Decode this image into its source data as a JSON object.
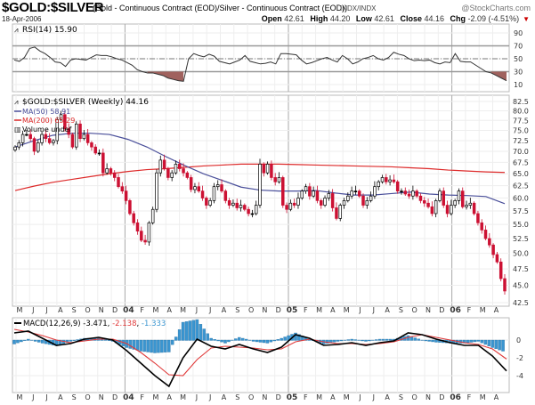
{
  "header": {
    "symbol": "$GOLD:$SILVER",
    "description": "(Gold - Continuous Contract (EOD)/Silver - Continuous Contract (EOD))",
    "exchange": "INDX/INDX",
    "watermark": "@StockCharts.com",
    "date": "18-Apr-2006",
    "open_label": "Open",
    "open": "42.61",
    "high_label": "High",
    "high": "44.20",
    "low_label": "Low",
    "low": "42.61",
    "close_label": "Close",
    "close": "44.16",
    "chg_label": "Chg",
    "chg": "-2.09 (-4.51%)",
    "chg_direction": "down"
  },
  "colors": {
    "up": "#000000",
    "down": "#cc1133",
    "ma50": "#4a4f9a",
    "ma200": "#dd2a2a",
    "macd": "#000000",
    "signal": "#e03a3a",
    "histogram": "#3a95d0",
    "rsi_fill": "#a0625e"
  },
  "x_axis": {
    "months": [
      "M",
      "J",
      "J",
      "A",
      "S",
      "O",
      "N",
      "D",
      "04",
      "F",
      "M",
      "A",
      "M",
      "J",
      "J",
      "A",
      "S",
      "O",
      "N",
      "D",
      "05",
      "F",
      "M",
      "A",
      "M",
      "J",
      "J",
      "A",
      "S",
      "O",
      "N",
      "D",
      "06",
      "F",
      "M",
      "A"
    ],
    "year_labels": [
      "04",
      "05",
      "06"
    ]
  },
  "chart_data": [
    {
      "panel": "rsi",
      "type": "line",
      "legend": "RSI(14) 15.90",
      "yticks": [
        90,
        70,
        50,
        30,
        10
      ],
      "ylim": [
        0,
        100
      ],
      "overbought": 70,
      "oversold": 30,
      "midline": 50,
      "values": [
        48,
        46,
        52,
        66,
        68,
        62,
        58,
        52,
        45,
        44,
        38,
        48,
        50,
        49,
        48,
        52,
        56,
        55,
        55,
        53,
        50,
        48,
        44,
        40,
        33,
        30,
        28,
        28,
        26,
        24,
        20,
        18,
        16,
        15,
        50,
        58,
        55,
        53,
        57,
        54,
        46,
        44,
        42,
        45,
        48,
        55,
        46,
        44,
        42,
        43,
        45,
        42,
        58,
        58,
        57,
        56,
        48,
        42,
        44,
        47,
        50,
        52,
        48,
        45,
        55,
        50,
        42,
        45,
        50,
        52,
        55,
        50,
        48,
        52,
        60,
        57,
        55,
        50,
        47,
        48,
        47,
        48,
        44,
        42,
        45,
        44,
        58,
        46,
        45,
        45,
        40,
        35,
        30,
        28,
        24,
        20,
        15.9
      ]
    },
    {
      "panel": "price",
      "type": "candlestick",
      "legend": {
        "title": "$GOLD:$SILVER (Weekly) 44.16",
        "ma50": "MA(50) 58.91",
        "ma200": "MA(200) 65.29",
        "volume": "Volume undef"
      },
      "scale": "log",
      "yticks": [
        82.5,
        80.0,
        77.5,
        75.0,
        72.5,
        70.0,
        67.5,
        65.0,
        62.5,
        60.0,
        57.5,
        55.0,
        52.5,
        50.0,
        47.5,
        45.0,
        42.5
      ],
      "ylim": [
        42.5,
        82.5
      ],
      "weekly_close": [
        71.0,
        72.0,
        74.0,
        74.0,
        73.0,
        70.0,
        72.0,
        74.0,
        73.0,
        72.0,
        72.5,
        77.7,
        79.0,
        75.4,
        74.0,
        71.0,
        76.6,
        73.0,
        74.0,
        72.0,
        71.0,
        69.6,
        69.6,
        65.2,
        66.1,
        65.2,
        64.2,
        62.3,
        61.4,
        59.5,
        57.0,
        55.3,
        53.8,
        52.2,
        51.9,
        55.3,
        57.8,
        65.2,
        68.0,
        66.1,
        64.2,
        65.2,
        67.1,
        66.1,
        65.2,
        64.2,
        61.7,
        62.3,
        61.4,
        60.0,
        58.6,
        59.5,
        62.3,
        62.7,
        61.4,
        59.5,
        58.6,
        59.0,
        58.1,
        58.6,
        57.8,
        57.0,
        57.0,
        58.6,
        67.1,
        65.2,
        67.1,
        64.2,
        63.3,
        64.2,
        58.6,
        57.8,
        59.0,
        58.6,
        60.0,
        61.4,
        62.3,
        60.4,
        61.4,
        59.5,
        58.6,
        60.0,
        60.9,
        58.1,
        56.1,
        58.6,
        59.5,
        60.4,
        61.4,
        61.4,
        60.4,
        58.6,
        59.5,
        60.4,
        62.3,
        63.3,
        64.2,
        63.3,
        63.7,
        63.3,
        61.4,
        61.4,
        60.8,
        60.4,
        61.4,
        60.4,
        59.5,
        59.0,
        58.3,
        57.0,
        59.5,
        61.4,
        58.6,
        57.0,
        58.6,
        59.5,
        61.4,
        58.3,
        58.6,
        59.0,
        57.0,
        55.3,
        54.0,
        52.5,
        51.4,
        49.8,
        48.6,
        46.0,
        44.16
      ],
      "ma50": [
        71.0,
        72.5,
        73.8,
        74.3,
        74.3,
        74.0,
        72.8,
        71.0,
        68.8,
        66.8,
        65.0,
        63.6,
        62.2,
        61.6,
        61.4,
        61.4,
        61.5,
        61.0,
        60.6,
        60.6,
        60.9,
        61.2,
        60.8,
        60.6,
        60.5,
        60.3,
        58.91
      ],
      "ma200": [
        61.5,
        62.4,
        63.2,
        63.8,
        64.4,
        65.0,
        65.5,
        65.9,
        66.1,
        66.4,
        66.7,
        66.9,
        67.1,
        67.1,
        67.1,
        67.0,
        66.9,
        66.8,
        66.7,
        66.6,
        66.5,
        66.3,
        66.1,
        65.8,
        65.6,
        65.4,
        65.29
      ]
    },
    {
      "panel": "macd",
      "type": "line",
      "legend": {
        "label": "MACD(12,26,9)",
        "macd": "-3.471",
        "signal": "-2.138",
        "histogram": "-1.333"
      },
      "yticks": [
        0,
        -2,
        -4
      ],
      "ylim": [
        -5.9,
        2.5
      ],
      "macd": [
        0.8,
        1.0,
        0.2,
        -0.6,
        -0.4,
        0.1,
        0.3,
        0.0,
        -1.2,
        -2.6,
        -4.0,
        -5.2,
        -2.0,
        0.1,
        -0.7,
        -1.0,
        -0.5,
        -1.0,
        -1.4,
        -0.8,
        0.6,
        0.2,
        -0.6,
        -0.5,
        -0.3,
        -0.6,
        -0.3,
        -0.1,
        0.8,
        0.6,
        0.1,
        -0.3,
        -0.6,
        -0.6,
        -1.8,
        -3.471
      ],
      "signal": [
        1.2,
        0.9,
        0.5,
        0.0,
        -0.3,
        -0.1,
        0.1,
        0.1,
        -0.4,
        -1.4,
        -2.6,
        -3.9,
        -4.0,
        -2.2,
        -0.9,
        -0.7,
        -0.8,
        -0.9,
        -1.1,
        -1.0,
        -0.2,
        0.1,
        -0.2,
        -0.4,
        -0.4,
        -0.5,
        -0.4,
        -0.2,
        0.3,
        0.6,
        0.3,
        0.0,
        -0.3,
        -0.5,
        -1.0,
        -2.138
      ]
    }
  ]
}
